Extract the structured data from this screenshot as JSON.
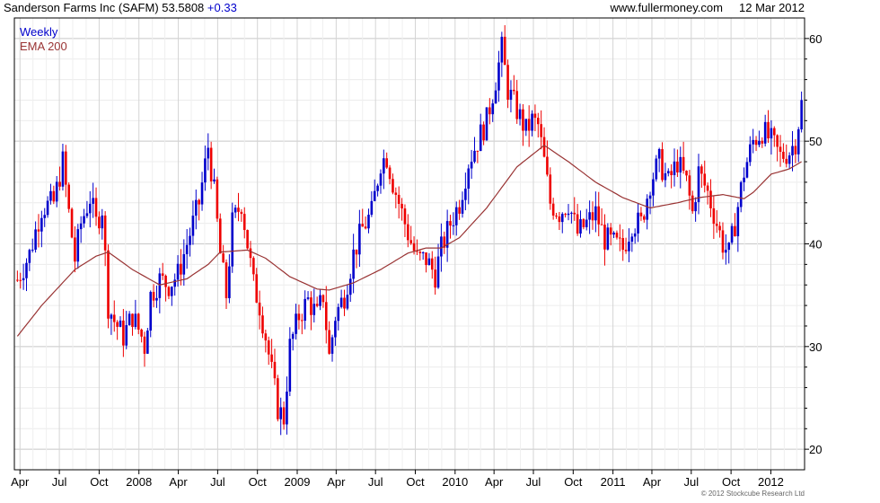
{
  "header": {
    "title": "Sanderson Farms Inc (SAFM)",
    "price": "53.5808",
    "change": "+0.33",
    "site": "www.fullermoney.com",
    "date": "12 Mar 2012"
  },
  "copyright": "© 2012 Stockcube Research Ltd",
  "colors": {
    "up": "#0000cc",
    "down": "#ee0000",
    "ema": "#993333",
    "grid": "#dcdcdc"
  },
  "chart_data": {
    "type": "line",
    "legend": [
      "Weekly",
      "EMA 200"
    ],
    "legend_position": "top-left",
    "grid": true,
    "ylim": [
      18,
      62
    ],
    "yticks": [
      20,
      30,
      40,
      50,
      60
    ],
    "xlabels": [
      "Apr",
      "Jul",
      "Oct",
      "2008",
      "Apr",
      "Jul",
      "Oct",
      "2009",
      "Apr",
      "Jul",
      "Oct",
      "2010",
      "Apr",
      "Jul",
      "Oct",
      "2011",
      "Apr",
      "Jul",
      "Oct",
      "2012"
    ],
    "price_keypoints": [
      [
        "2007-03-26",
        36.5
      ],
      [
        "2007-04-23",
        39
      ],
      [
        "2007-05-21",
        43.5
      ],
      [
        "2007-06-18",
        44
      ],
      [
        "2007-07-09",
        48
      ],
      [
        "2007-07-23",
        43
      ],
      [
        "2007-08-06",
        38.5
      ],
      [
        "2007-08-20",
        42
      ],
      [
        "2007-09-10",
        44.5
      ],
      [
        "2007-09-24",
        42
      ],
      [
        "2007-10-08",
        43.5
      ],
      [
        "2007-10-22",
        34
      ],
      [
        "2007-11-05",
        32.5
      ],
      [
        "2007-11-26",
        31
      ],
      [
        "2007-12-17",
        33
      ],
      [
        "2008-01-07",
        31
      ],
      [
        "2008-01-14",
        30
      ],
      [
        "2008-01-28",
        35
      ],
      [
        "2008-02-18",
        36.5
      ],
      [
        "2008-03-10",
        36
      ],
      [
        "2008-03-31",
        37
      ],
      [
        "2008-04-21",
        40
      ],
      [
        "2008-05-19",
        44
      ],
      [
        "2008-06-09",
        49.5
      ],
      [
        "2008-06-23",
        45
      ],
      [
        "2008-07-07",
        39
      ],
      [
        "2008-07-21",
        35
      ],
      [
        "2008-08-04",
        42
      ],
      [
        "2008-08-25",
        44
      ],
      [
        "2008-09-08",
        40
      ],
      [
        "2008-09-22",
        36
      ],
      [
        "2008-10-06",
        34
      ],
      [
        "2008-10-20",
        31
      ],
      [
        "2008-11-03",
        27.5
      ],
      [
        "2008-11-17",
        24
      ],
      [
        "2008-12-01",
        23
      ],
      [
        "2008-12-15",
        30
      ],
      [
        "2009-01-05",
        33
      ],
      [
        "2009-01-26",
        34.5
      ],
      [
        "2009-02-16",
        33
      ],
      [
        "2009-03-02",
        35
      ],
      [
        "2009-03-16",
        29
      ],
      [
        "2009-03-30",
        33
      ],
      [
        "2009-04-20",
        35
      ],
      [
        "2009-05-11",
        39
      ],
      [
        "2009-06-01",
        41.5
      ],
      [
        "2009-06-22",
        43
      ],
      [
        "2009-07-13",
        48
      ],
      [
        "2009-07-27",
        48.5
      ],
      [
        "2009-08-10",
        46
      ],
      [
        "2009-08-24",
        44
      ],
      [
        "2009-09-14",
        41
      ],
      [
        "2009-10-05",
        38.5
      ],
      [
        "2009-10-26",
        38.5
      ],
      [
        "2009-11-16",
        37
      ],
      [
        "2009-11-30",
        39.5
      ],
      [
        "2009-12-21",
        42
      ],
      [
        "2010-01-11",
        44
      ],
      [
        "2010-02-01",
        48
      ],
      [
        "2010-02-22",
        50
      ],
      [
        "2010-03-15",
        52
      ],
      [
        "2010-04-05",
        56
      ],
      [
        "2010-04-19",
        59
      ],
      [
        "2010-05-03",
        55
      ],
      [
        "2010-05-24",
        53
      ],
      [
        "2010-06-14",
        51
      ],
      [
        "2010-06-28",
        52
      ],
      [
        "2010-07-12",
        51.5
      ],
      [
        "2010-07-26",
        48
      ],
      [
        "2010-08-09",
        44
      ],
      [
        "2010-08-30",
        43
      ],
      [
        "2010-09-20",
        44
      ],
      [
        "2010-10-11",
        41
      ],
      [
        "2010-11-01",
        42
      ],
      [
        "2010-11-22",
        43
      ],
      [
        "2010-12-13",
        40.5
      ],
      [
        "2011-01-03",
        40
      ],
      [
        "2011-01-24",
        39.5
      ],
      [
        "2011-02-14",
        42
      ],
      [
        "2011-03-07",
        42
      ],
      [
        "2011-03-28",
        46
      ],
      [
        "2011-04-18",
        48
      ],
      [
        "2011-05-09",
        46
      ],
      [
        "2011-05-30",
        48
      ],
      [
        "2011-06-20",
        46
      ],
      [
        "2011-07-04",
        43
      ],
      [
        "2011-07-18",
        47
      ],
      [
        "2011-08-08",
        45
      ],
      [
        "2011-08-29",
        42
      ],
      [
        "2011-09-12",
        40
      ],
      [
        "2011-09-26",
        39
      ],
      [
        "2011-10-10",
        42
      ],
      [
        "2011-10-31",
        47
      ],
      [
        "2011-11-21",
        50
      ],
      [
        "2011-12-12",
        51
      ],
      [
        "2012-01-02",
        50
      ],
      [
        "2012-01-23",
        48.5
      ],
      [
        "2012-02-13",
        49
      ],
      [
        "2012-02-27",
        50
      ],
      [
        "2012-03-12",
        53.6
      ]
    ],
    "ema_keypoints": [
      [
        "2007-03-26",
        31
      ],
      [
        "2007-05-21",
        34
      ],
      [
        "2007-08-06",
        37.5
      ],
      [
        "2007-09-24",
        38.8
      ],
      [
        "2007-10-22",
        39.2
      ],
      [
        "2007-12-17",
        37.5
      ],
      [
        "2008-02-18",
        36
      ],
      [
        "2008-04-21",
        36.6
      ],
      [
        "2008-06-09",
        38
      ],
      [
        "2008-07-07",
        39.2
      ],
      [
        "2008-09-08",
        39.4
      ],
      [
        "2008-10-20",
        38.6
      ],
      [
        "2008-12-15",
        36.8
      ],
      [
        "2009-02-16",
        35.6
      ],
      [
        "2009-03-16",
        35.5
      ],
      [
        "2009-05-11",
        36.2
      ],
      [
        "2009-07-13",
        37.5
      ],
      [
        "2009-09-14",
        39.1
      ],
      [
        "2009-10-26",
        39.6
      ],
      [
        "2009-11-30",
        39.6
      ],
      [
        "2010-01-11",
        40.6
      ],
      [
        "2010-03-15",
        43.5
      ],
      [
        "2010-05-24",
        47.5
      ],
      [
        "2010-07-26",
        49.6
      ],
      [
        "2010-09-20",
        48
      ],
      [
        "2010-11-22",
        46
      ],
      [
        "2011-01-24",
        44.5
      ],
      [
        "2011-03-28",
        43.5
      ],
      [
        "2011-05-30",
        44
      ],
      [
        "2011-07-18",
        44.5
      ],
      [
        "2011-09-12",
        44.8
      ],
      [
        "2011-10-31",
        44.4
      ],
      [
        "2011-11-21",
        45
      ],
      [
        "2012-01-02",
        46.8
      ],
      [
        "2012-02-13",
        47.3
      ],
      [
        "2012-03-12",
        48
      ]
    ]
  }
}
